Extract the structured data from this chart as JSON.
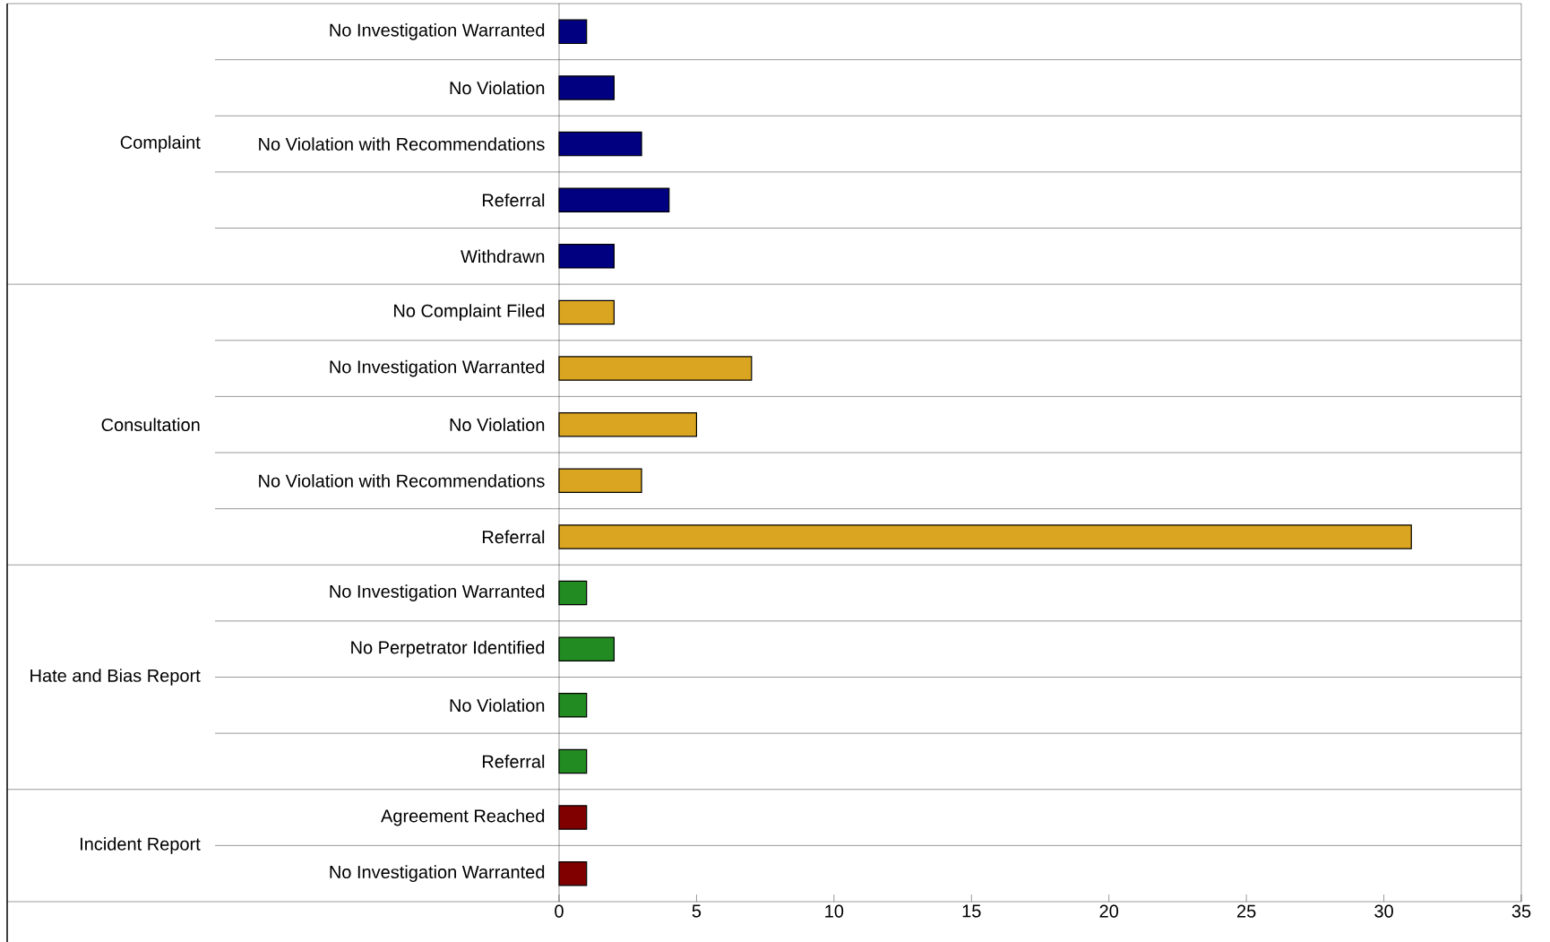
{
  "chart_data": {
    "type": "bar",
    "orientation": "horizontal",
    "categories": [
      "No Investigation Warranted",
      "No Violation",
      "No Violation with Recommendations",
      "Referral",
      "Withdrawn",
      "No Complaint Filed",
      "No Investigation Warranted",
      "No Violation",
      "No Violation with Recommendations",
      "Referral",
      "No Investigation Warranted",
      "No Perpetrator Identified",
      "No Violation",
      "Referral",
      "Agreement Reached",
      "No Investigation Warranted"
    ],
    "series": [
      {
        "color": "#000080",
        "values": [
          1,
          2,
          3,
          4,
          2,
          null,
          null,
          null,
          null,
          null,
          null,
          null,
          null,
          null,
          null,
          null
        ]
      },
      {
        "color": "#daa520",
        "values": [
          null,
          null,
          null,
          null,
          null,
          2,
          7,
          5,
          3,
          31,
          null,
          null,
          null,
          null,
          null,
          null
        ]
      },
      {
        "color": "#228b22",
        "values": [
          null,
          null,
          null,
          null,
          null,
          null,
          null,
          null,
          null,
          null,
          1,
          2,
          1,
          1,
          null,
          null
        ]
      },
      {
        "color": "#800000",
        "values": [
          null,
          null,
          null,
          null,
          null,
          null,
          null,
          null,
          null,
          null,
          null,
          null,
          null,
          null,
          1,
          1
        ]
      }
    ],
    "annotations": [
      "Complaint",
      "Consultation",
      "Hate and Bias Report",
      "Incident Report"
    ],
    "xlim": [
      0,
      35
    ],
    "xticks": [
      0,
      5,
      10,
      15,
      20,
      25,
      30,
      35
    ],
    "grid": "y"
  }
}
